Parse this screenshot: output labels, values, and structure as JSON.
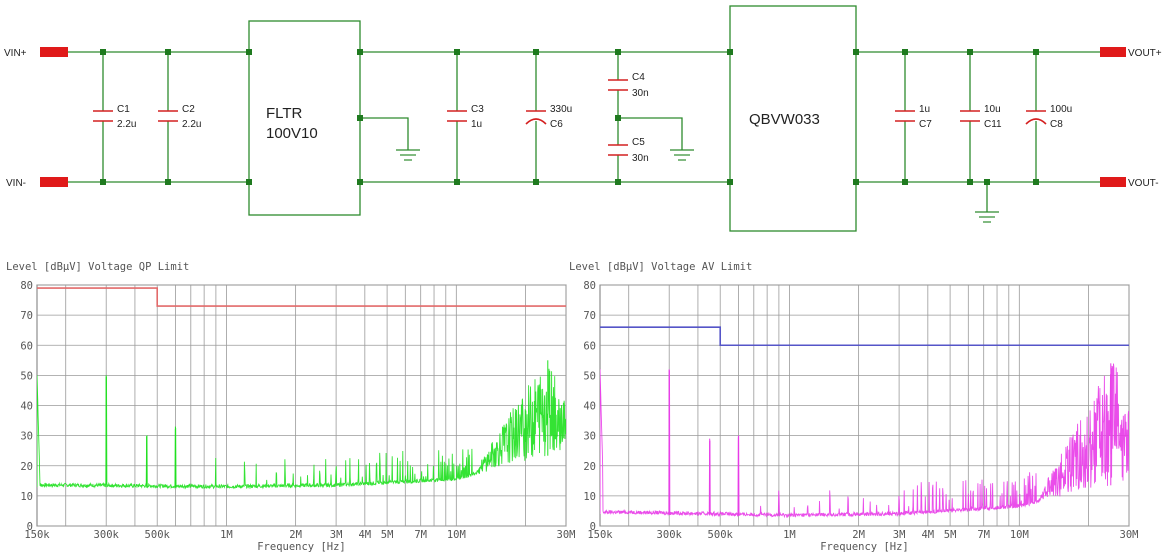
{
  "schematic": {
    "terminals": {
      "vin_plus": "VIN+",
      "vin_minus": "VIN-",
      "vout_plus": "VOUT+",
      "vout_minus": "VOUT-"
    },
    "filter": {
      "line1": "FLTR",
      "line2": "100V10"
    },
    "module": {
      "label": "QBVW033"
    },
    "capacitors": [
      {
        "ref": "C1",
        "value": "2.2u",
        "kind": "ceramic"
      },
      {
        "ref": "C2",
        "value": "2.2u",
        "kind": "ceramic"
      },
      {
        "ref": "C3",
        "value": "1u",
        "kind": "ceramic"
      },
      {
        "ref": "C6",
        "value": "330u",
        "kind": "electrolytic"
      },
      {
        "ref": "C4",
        "value": "30n",
        "kind": "ceramic"
      },
      {
        "ref": "C5",
        "value": "30n",
        "kind": "ceramic"
      },
      {
        "ref": "C7",
        "value": "1u",
        "kind": "ceramic"
      },
      {
        "ref": "C11",
        "value": "10u",
        "kind": "ceramic"
      },
      {
        "ref": "C8",
        "value": "100u",
        "kind": "electrolytic"
      }
    ]
  },
  "chart_data": [
    {
      "type": "line",
      "title": "Level [dBµV] Voltage QP Limit",
      "xlabel": "Frequency [Hz]",
      "ylabel": "",
      "x_scale": "log",
      "xlim": [
        150000,
        30000000
      ],
      "ylim": [
        0,
        80
      ],
      "x_ticks": [
        {
          "value": 150000,
          "label": "150k"
        },
        {
          "value": 300000,
          "label": "300k"
        },
        {
          "value": 500000,
          "label": "500k"
        },
        {
          "value": 1000000,
          "label": "1M"
        },
        {
          "value": 2000000,
          "label": "2M"
        },
        {
          "value": 3000000,
          "label": "3M"
        },
        {
          "value": 4000000,
          "label": "4M"
        },
        {
          "value": 5000000,
          "label": "5M"
        },
        {
          "value": 7000000,
          "label": "7M"
        },
        {
          "value": 10000000,
          "label": "10M"
        },
        {
          "value": 30000000,
          "label": "30M"
        }
      ],
      "y_ticks": [
        0,
        10,
        20,
        30,
        40,
        50,
        60,
        70,
        80
      ],
      "grid": true,
      "series": [
        {
          "name": "",
          "role": "limit",
          "color": "#e26a6a",
          "x": [
            150000,
            500000,
            500000,
            30000000
          ],
          "y": [
            79,
            79,
            73,
            73
          ]
        },
        {
          "name": "",
          "role": "measurement",
          "color": "#1ee01e",
          "peaks": [
            {
              "x": 150000,
              "y": 50
            },
            {
              "x": 300000,
              "y": 50
            },
            {
              "x": 450000,
              "y": 30
            },
            {
              "x": 600000,
              "y": 33
            },
            {
              "x": 25000000,
              "y": 55
            }
          ],
          "floor": [
            {
              "x": 200000,
              "y": 13
            },
            {
              "x": 1000000,
              "y": 12.5
            },
            {
              "x": 3000000,
              "y": 13
            },
            {
              "x": 10000000,
              "y": 15
            },
            {
              "x": 30000000,
              "y": 25
            }
          ]
        }
      ]
    },
    {
      "type": "line",
      "title": "Level [dBµV] Voltage AV Limit",
      "xlabel": "Frequency [Hz]",
      "ylabel": "",
      "x_scale": "log",
      "xlim": [
        150000,
        30000000
      ],
      "ylim": [
        0,
        80
      ],
      "x_ticks": [
        {
          "value": 150000,
          "label": "150k"
        },
        {
          "value": 300000,
          "label": "300k"
        },
        {
          "value": 500000,
          "label": "500k"
        },
        {
          "value": 1000000,
          "label": "1M"
        },
        {
          "value": 2000000,
          "label": "2M"
        },
        {
          "value": 3000000,
          "label": "3M"
        },
        {
          "value": 4000000,
          "label": "4M"
        },
        {
          "value": 5000000,
          "label": "5M"
        },
        {
          "value": 7000000,
          "label": "7M"
        },
        {
          "value": 10000000,
          "label": "10M"
        },
        {
          "value": 30000000,
          "label": "30M"
        }
      ],
      "y_ticks": [
        0,
        10,
        20,
        30,
        40,
        50,
        60,
        70,
        80
      ],
      "grid": true,
      "series": [
        {
          "name": "",
          "role": "limit",
          "color": "#5555c8",
          "x": [
            150000,
            500000,
            500000,
            30000000
          ],
          "y": [
            66,
            66,
            60,
            60
          ]
        },
        {
          "name": "",
          "role": "measurement",
          "color": "#e83ae8",
          "peaks": [
            {
              "x": 150000,
              "y": 52
            },
            {
              "x": 300000,
              "y": 52
            },
            {
              "x": 450000,
              "y": 29
            },
            {
              "x": 600000,
              "y": 30
            },
            {
              "x": 25000000,
              "y": 54
            }
          ],
          "floor": [
            {
              "x": 200000,
              "y": 4
            },
            {
              "x": 1000000,
              "y": 3
            },
            {
              "x": 3000000,
              "y": 3.5
            },
            {
              "x": 10000000,
              "y": 6
            },
            {
              "x": 30000000,
              "y": 15
            }
          ]
        }
      ]
    }
  ]
}
